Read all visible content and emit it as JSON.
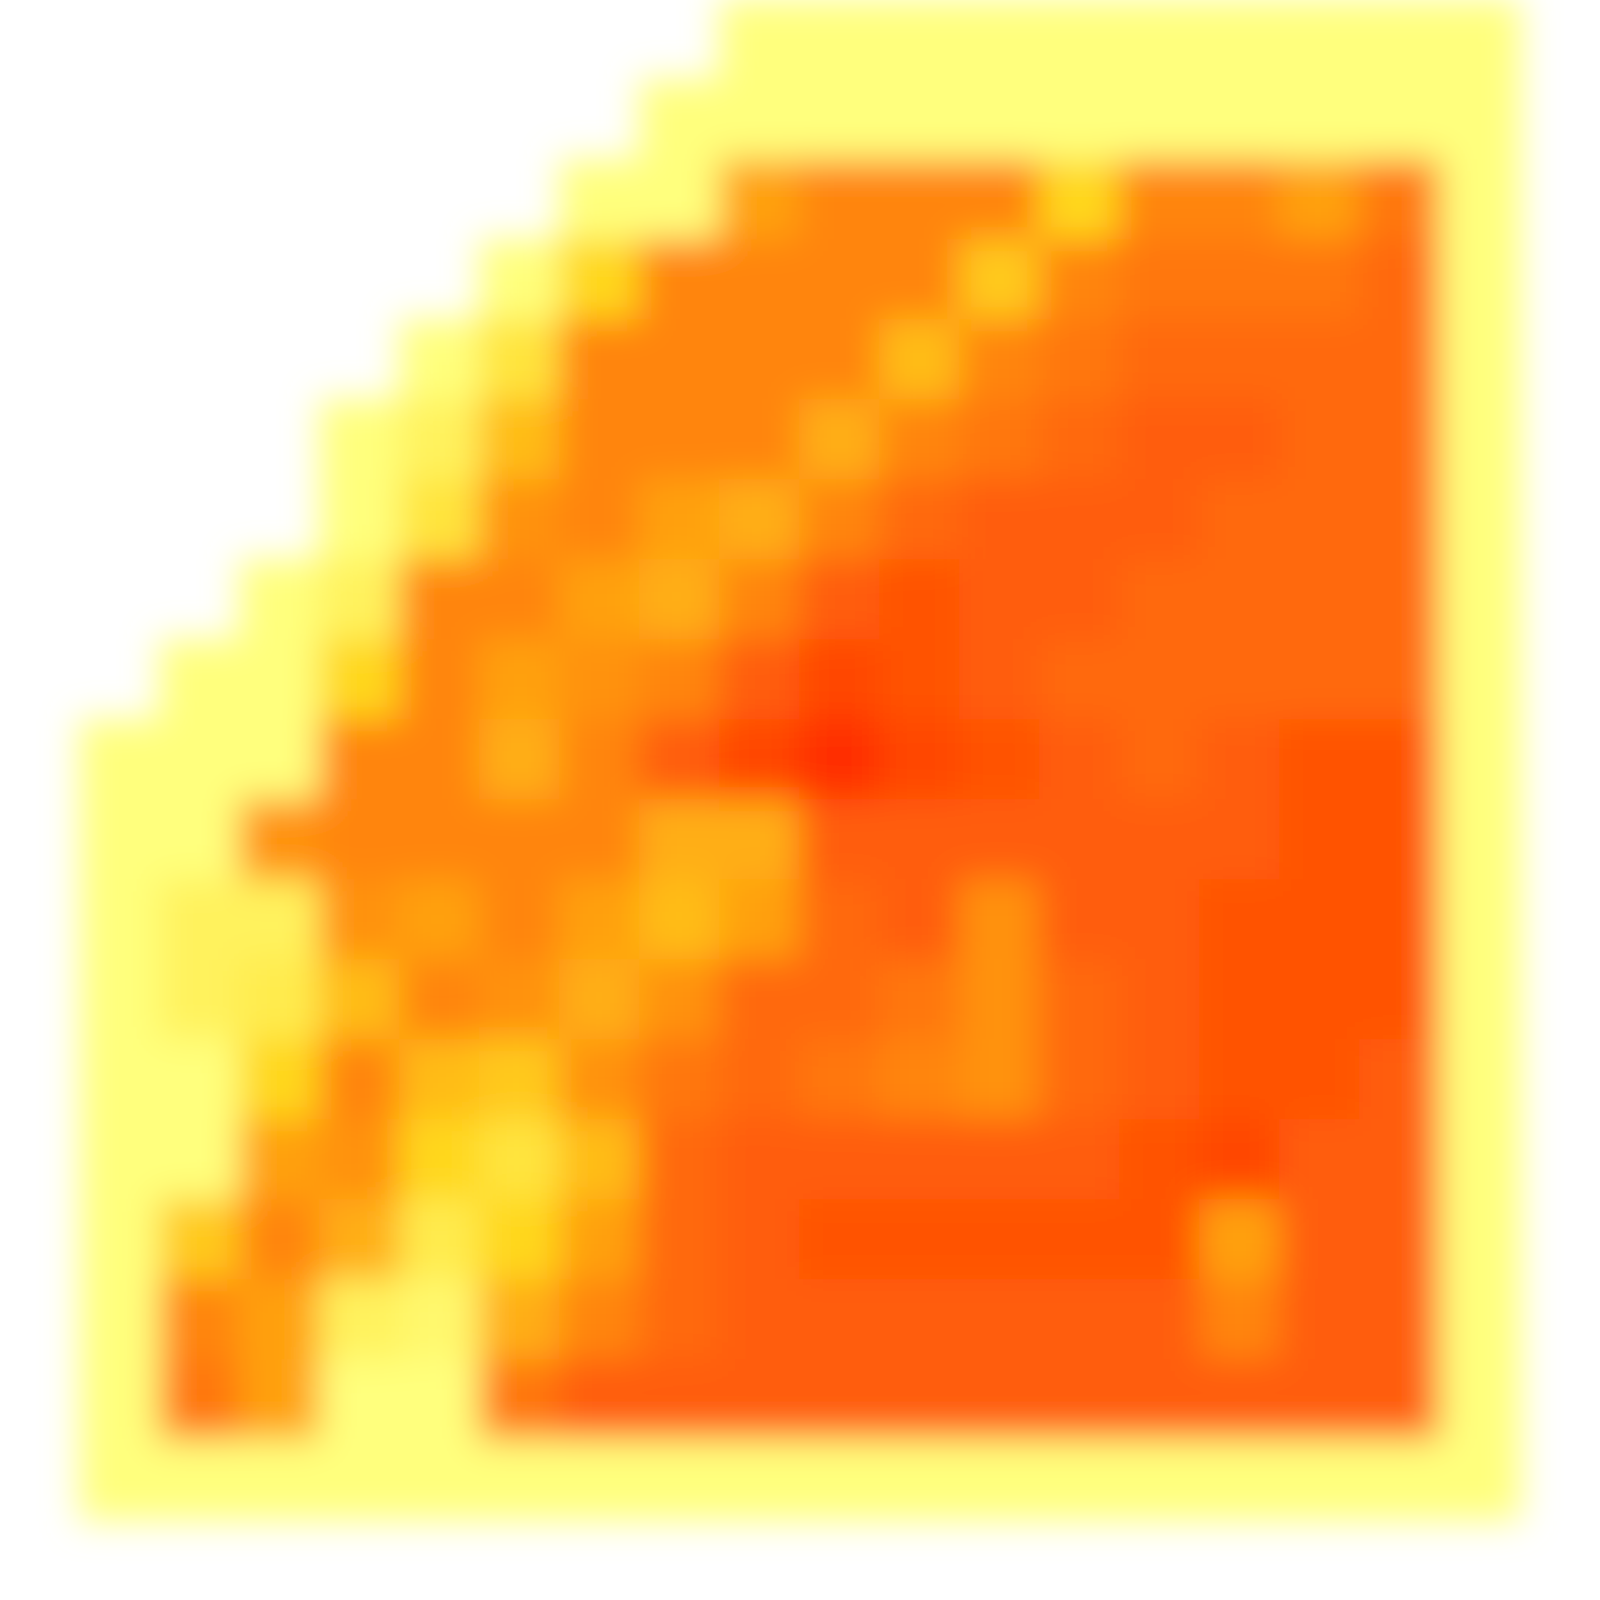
{
  "chart_data": {
    "type": "heatmap",
    "tick_labels": false,
    "zlim": [
      0,
      1
    ],
    "cells": [
      [
        null,
        null,
        null,
        null,
        null,
        null,
        null,
        null,
        null,
        0,
        0,
        0,
        0,
        0,
        0,
        0,
        0,
        0,
        0,
        null
      ],
      [
        null,
        null,
        null,
        null,
        null,
        null,
        null,
        null,
        0,
        0,
        0,
        0,
        0,
        0,
        0,
        0,
        0,
        0,
        0,
        null
      ],
      [
        null,
        null,
        null,
        null,
        null,
        null,
        null,
        0,
        0,
        0.5,
        0.6,
        0.6,
        0.6,
        0.3,
        0.6,
        0.6,
        0.5,
        0.65,
        0,
        null
      ],
      [
        null,
        null,
        null,
        null,
        null,
        null,
        0,
        0.3,
        0.6,
        0.6,
        0.6,
        0.6,
        0.35,
        0.6,
        0.65,
        0.65,
        0.65,
        0.7,
        0,
        null
      ],
      [
        null,
        null,
        null,
        null,
        null,
        0,
        0.2,
        0.6,
        0.6,
        0.6,
        0.6,
        0.4,
        0.6,
        0.65,
        0.7,
        0.7,
        0.7,
        0.7,
        0,
        null
      ],
      [
        null,
        null,
        null,
        null,
        0,
        0.1,
        0.4,
        0.6,
        0.6,
        0.6,
        0.45,
        0.6,
        0.65,
        0.7,
        0.75,
        0.75,
        0.7,
        0.7,
        0,
        null
      ],
      [
        null,
        null,
        null,
        null,
        0,
        0.2,
        0.55,
        0.6,
        0.5,
        0.45,
        0.6,
        0.7,
        0.75,
        0.75,
        0.75,
        0.7,
        0.7,
        0.7,
        0,
        null
      ],
      [
        null,
        null,
        null,
        0,
        0.1,
        0.6,
        0.6,
        0.5,
        0.45,
        0.6,
        0.75,
        0.8,
        0.75,
        0.75,
        0.7,
        0.7,
        0.7,
        0.7,
        0,
        null
      ],
      [
        null,
        null,
        0,
        0,
        0.3,
        0.6,
        0.5,
        0.55,
        0.6,
        0.75,
        0.85,
        0.8,
        0.75,
        0.7,
        0.7,
        0.7,
        0.7,
        0.7,
        0,
        null
      ],
      [
        null,
        0,
        0,
        0,
        0.6,
        0.6,
        0.45,
        0.6,
        0.75,
        0.85,
        0.95,
        0.85,
        0.8,
        0.75,
        0.7,
        0.75,
        0.8,
        0.8,
        0,
        null
      ],
      [
        null,
        0,
        0,
        0.55,
        0.6,
        0.6,
        0.6,
        0.6,
        0.45,
        0.45,
        0.75,
        0.75,
        0.75,
        0.75,
        0.75,
        0.75,
        0.8,
        0.8,
        0,
        null
      ],
      [
        null,
        0,
        0.1,
        0.1,
        0.55,
        0.5,
        0.6,
        0.5,
        0.4,
        0.5,
        0.7,
        0.75,
        0.55,
        0.75,
        0.75,
        0.8,
        0.8,
        0.8,
        0,
        null
      ],
      [
        null,
        0,
        0.1,
        0.15,
        0.4,
        0.6,
        0.55,
        0.45,
        0.55,
        0.7,
        0.7,
        0.65,
        0.55,
        0.7,
        0.75,
        0.8,
        0.8,
        0.8,
        0,
        null
      ],
      [
        null,
        0,
        0,
        0.3,
        0.6,
        0.4,
        0.35,
        0.55,
        0.65,
        0.7,
        0.65,
        0.6,
        0.55,
        0.7,
        0.75,
        0.8,
        0.8,
        0.75,
        0,
        null
      ],
      [
        null,
        0,
        0,
        0.5,
        0.55,
        0.3,
        0.2,
        0.4,
        0.7,
        0.75,
        0.75,
        0.75,
        0.75,
        0.75,
        0.8,
        0.85,
        0.75,
        0.75,
        0,
        null
      ],
      [
        null,
        0,
        0.35,
        0.6,
        0.45,
        0.15,
        0.3,
        0.5,
        0.7,
        0.75,
        0.8,
        0.8,
        0.8,
        0.8,
        0.8,
        0.5,
        0.75,
        0.75,
        0,
        null
      ],
      [
        null,
        0,
        0.6,
        0.5,
        0.1,
        0.05,
        0.45,
        0.6,
        0.7,
        0.75,
        0.75,
        0.75,
        0.75,
        0.75,
        0.75,
        0.6,
        0.75,
        0.75,
        0,
        null
      ],
      [
        null,
        0,
        0.65,
        0.5,
        0,
        0,
        0.65,
        0.75,
        0.75,
        0.75,
        0.75,
        0.75,
        0.75,
        0.75,
        0.75,
        0.75,
        0.75,
        0.75,
        0,
        null
      ],
      [
        null,
        0,
        0,
        0,
        0,
        0,
        0,
        0,
        0,
        0,
        0,
        0,
        0,
        0,
        0,
        0,
        0,
        0,
        0,
        null
      ],
      [
        null,
        null,
        null,
        null,
        null,
        null,
        null,
        null,
        null,
        null,
        null,
        null,
        null,
        null,
        null,
        null,
        null,
        null,
        null,
        null
      ]
    ]
  }
}
